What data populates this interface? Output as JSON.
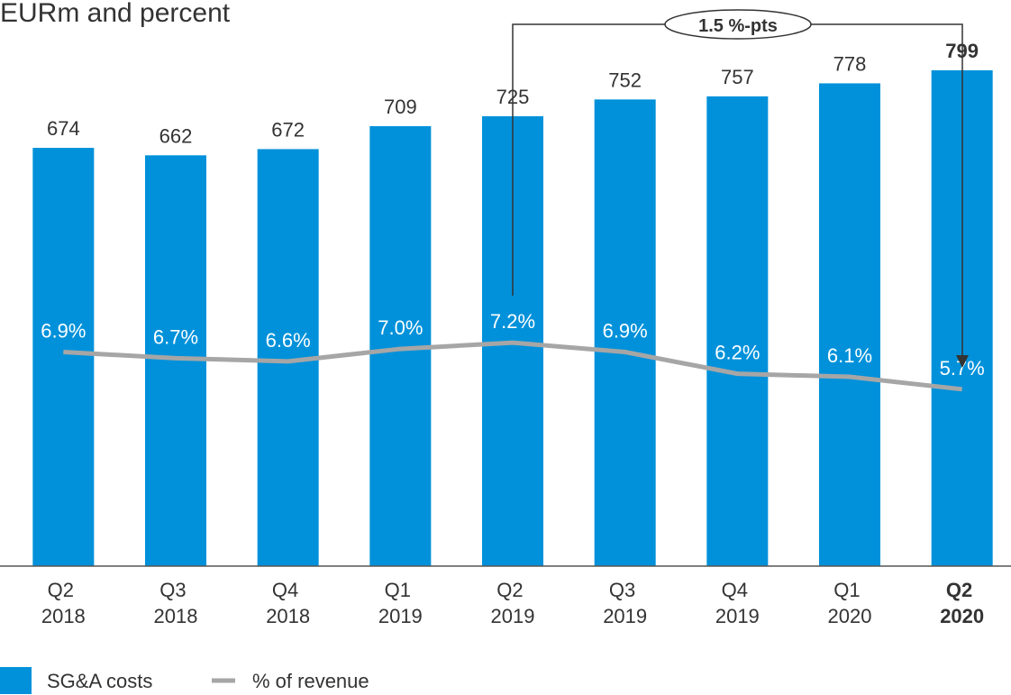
{
  "chart_data": {
    "type": "bar",
    "title": "EURm and percent",
    "annotation": "1.5 %-pts",
    "categories": [
      "Q2 2018",
      "Q3 2018",
      "Q4 2018",
      "Q1 2019",
      "Q2 2019",
      "Q3 2019",
      "Q4 2019",
      "Q1 2020",
      "Q2 2020"
    ],
    "series": [
      {
        "name": "SG&A costs",
        "type": "bar",
        "color": "#0091da",
        "values": [
          674,
          662,
          672,
          709,
          725,
          752,
          757,
          778,
          799
        ]
      },
      {
        "name": "% of revenue",
        "type": "line",
        "axis": "y2",
        "color": "#a6a6a6",
        "values": [
          6.9,
          6.7,
          6.6,
          7.0,
          7.2,
          6.9,
          6.2,
          6.1,
          5.7
        ],
        "value_labels": [
          "6.9%",
          "6.7%",
          "6.6%",
          "7.0%",
          "7.2%",
          "6.9%",
          "6.2%",
          "6.1%",
          "5.7%"
        ]
      }
    ],
    "ylim": [
      0,
      800
    ],
    "y2lim": [
      0,
      16
    ],
    "grid": false
  }
}
